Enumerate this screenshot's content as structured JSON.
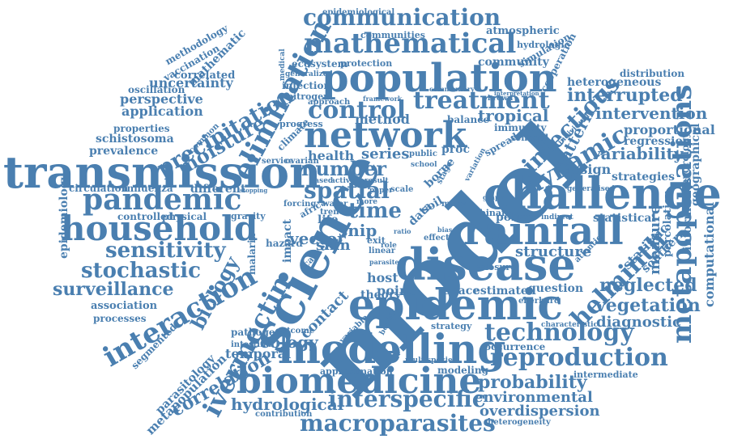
{
  "colors": {
    "text": "#4a7fb0",
    "background": "#ffffff"
  },
  "words": {
    "model": "model",
    "science": "science",
    "transmission": "transmission",
    "challenge": "challenge",
    "epidemic": "epidemic",
    "disease": "disease",
    "modelling": "modelling",
    "biomedicine": "biomedicine",
    "population": "population",
    "network": "network",
    "rainfall": "rainfall",
    "mathematical": "mathematical",
    "household": "household",
    "pandemic": "pandemic",
    "communication": "communication",
    "metapopulations": "metapopulations",
    "elimination": "elimination",
    "interaction": "interaction",
    "reproduction": "reproduction",
    "technology": "technology",
    "dynamic": "dynamic",
    "treatment": "treatment",
    "control": "control",
    "spatial": "spatial",
    "time": "time",
    "number": "number",
    "helminth": "helminth",
    "infectious": "infectious",
    "sensitivity": "sensitivity",
    "stochastic": "stochastic",
    "surveillance": "surveillance",
    "ivermectin": "ivermectin",
    "biology": "biology",
    "macroparasites": "macroparasites",
    "interspecific": "interspecific",
    "hydrological": "hydrological",
    "probability": "probability",
    "environmental": "environmental",
    "overdispersion": "overdispersion",
    "precipitation": "precipitation",
    "moisture": "moisture",
    "neglected": "neglected",
    "vegetation": "vegetation",
    "diagnostic": "diagnostic",
    "intervention": "intervention",
    "interrupted": "interrupted",
    "heterogeneous": "heterogeneous",
    "variability": "variability",
    "strategies": "strategies",
    "design": "design",
    "structure": "structure",
    "measure": "measure",
    "statistical": "statistical",
    "regression": "regression",
    "proportional": "proportional",
    "computational": "computational",
    "informatics": "informatics",
    "geographical": "geographical",
    "percolation": "percolation",
    "statistic": "statistic",
    "southern": "southern",
    "series": "series",
    "health": "health",
    "method": "method",
    "tropical": "tropical",
    "pattern": "pattern",
    "vector": "vector",
    "snip": "snip",
    "skin": "skin",
    "contact": "contact",
    "host": "host",
    "point": "point",
    "theory": "theory",
    "estimate": "estimate",
    "space": "space",
    "question": "question",
    "policy": "policy",
    "ecology": "ecology",
    "temporal": "temporal",
    "correlation": "correlation",
    "parasitology": "parasitology",
    "metapopulation": "metapopulation",
    "segmented": "segmented",
    "epidemiology": "epidemiology",
    "processes": "processes",
    "association": "association",
    "controlled": "controlled",
    "physical": "physical",
    "different": "different",
    "circulation": "circulation",
    "influenza": "influenza",
    "prevalence": "prevalence",
    "schistosoma": "schistosoma",
    "properties": "properties",
    "application": "application",
    "perspective": "perspective",
    "uncertainty": "uncertainty",
    "oscillation": "oscillation",
    "correlated": "correlated",
    "vaccination": "vaccination",
    "methodology": "methodology",
    "mathematic": "mathematic",
    "epidemiological": "epidemiological",
    "communities": "communities",
    "atmospheric": "atmospheric",
    "hydrologic": "hydrologic",
    "simulation": "simulation",
    "cooperation": "cooperation",
    "community": "community",
    "ecosystem": "ecosystem",
    "protection": "protection",
    "infection": "infection",
    "nitrogen": "nitrogen",
    "distribution": "distribution",
    "immunity": "immunity",
    "senegal": "senegal",
    "hydrology": "hydrology",
    "spread": "spread",
    "progress": "progress",
    "approach": "approach",
    "balance": "balance",
    "proc": "proc",
    "borne": "borne",
    "climate": "climate",
    "service": "service",
    "ovarian": "ovarian",
    "public": "public",
    "soil": "soil",
    "data": "data",
    "life": "life",
    "impact": "impact",
    "cancer": "cancer",
    "hazard": "hazard",
    "malaria": "malaria",
    "africa": "africa",
    "water": "water",
    "trend": "trend",
    "forcing": "forcing",
    "gravity": "gravity",
    "pathogen": "pathogen",
    "outcome": "outcome",
    "intestinal": "intestinal",
    "strategy": "strategy",
    "variable": "variable",
    "approximation": "approximation",
    "modeling": "modeling",
    "multispecies": "multispecies",
    "contribution": "contribution",
    "occurrence": "occurrence",
    "eberhard": "eberhard",
    "intermediate": "intermediate",
    "heterogeneity": "heterogeneity",
    "characteristic": "characteristic",
    "atlantic": "atlantic",
    "closure": "closure",
    "indirect": "indirect",
    "binary": "binary",
    "many": "many",
    "effect": "effect",
    "linear": "linear",
    "exit": "exit",
    "result": "result",
    "scale": "scale",
    "based": "based",
    "active": "active",
    "paper": "paper",
    "more": "more",
    "brown": "brown",
    "stage": "stage",
    "variation": "variation",
    "generalised": "generalised",
    "individual": "individual",
    "school": "school",
    "generalized": "generalized",
    "medical": "medical",
    "framework": "framework",
    "commentary": "commentary",
    "interpretation": "interpretation",
    "stopping": "stopping",
    "common": "common",
    "ratio": "ratio",
    "graph": "graph",
    "role": "role",
    "parasite": "parasite",
    "bias": "bias",
    "benefit": "benefit"
  }
}
